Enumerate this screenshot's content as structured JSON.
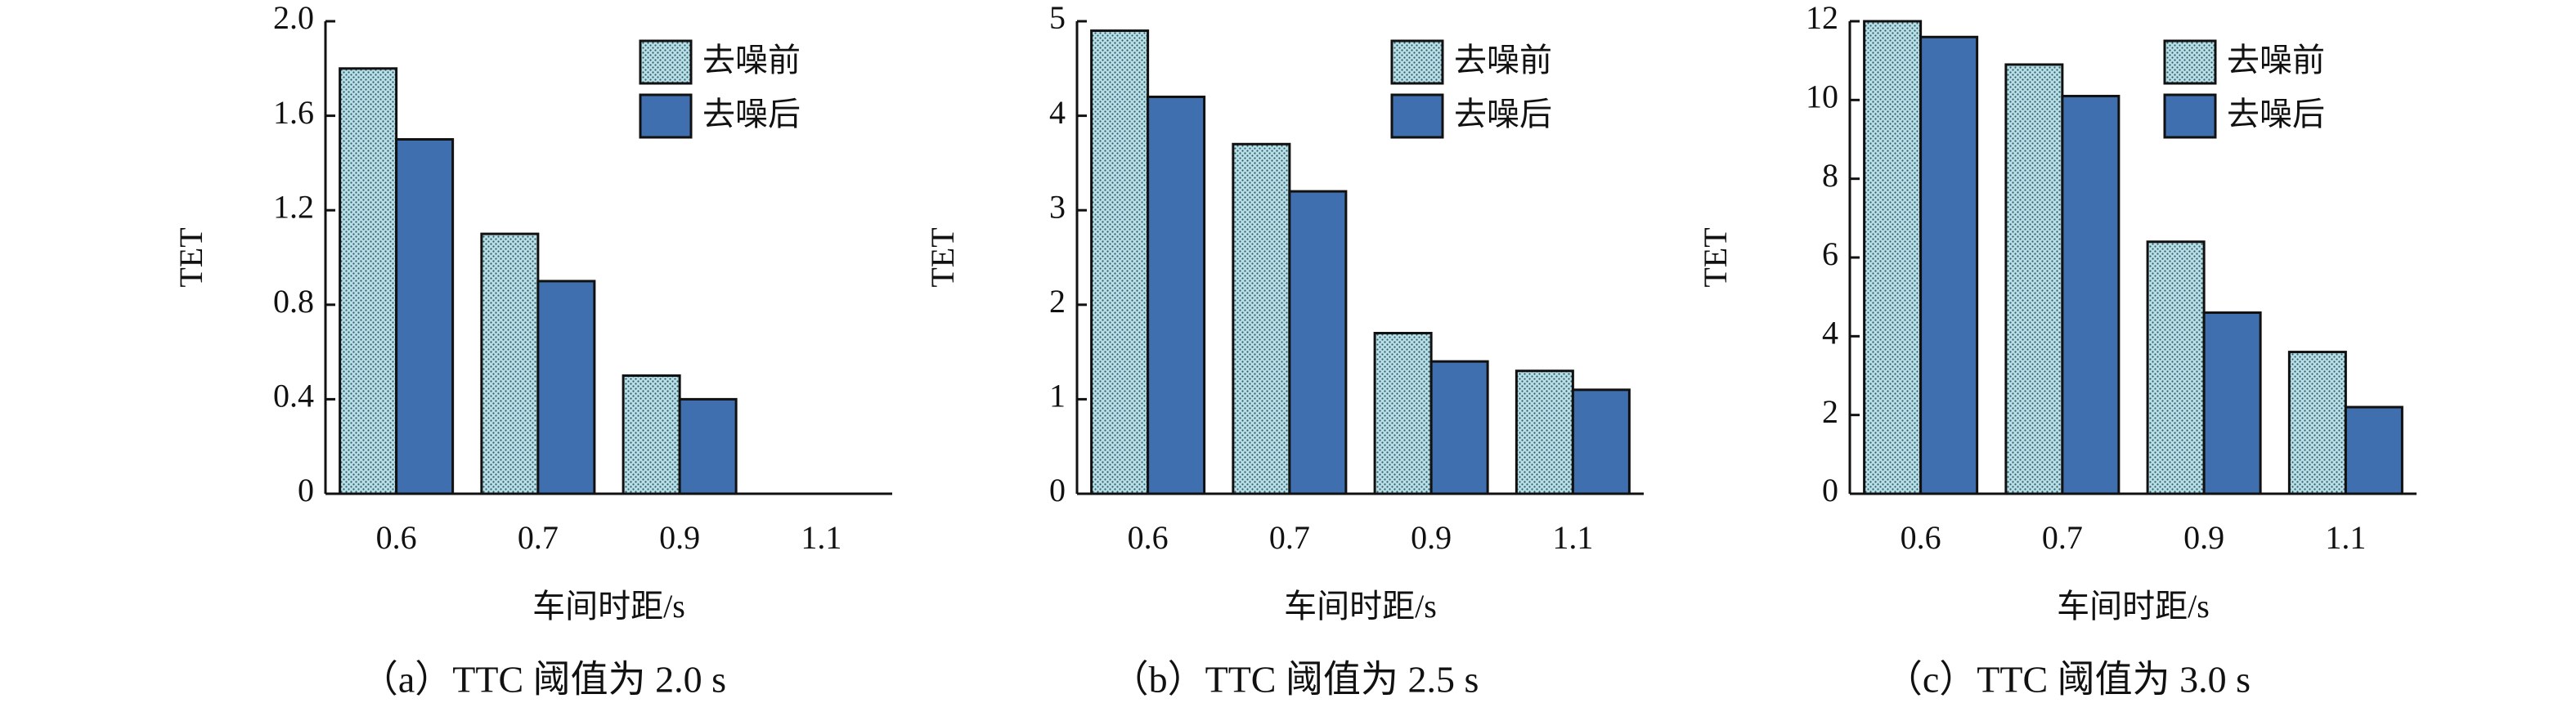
{
  "chart_data": [
    {
      "type": "bar",
      "caption": "（a）TTC 阈值为 2.0 s",
      "xlabel": "车间时距/s",
      "ylabel": "TET",
      "categories": [
        "0.6",
        "0.7",
        "0.9",
        "1.1"
      ],
      "series": [
        {
          "name": "去噪前",
          "color": "#a9d4dc",
          "values": [
            1.8,
            1.1,
            0.5,
            0
          ]
        },
        {
          "name": "去噪后",
          "color": "#3f6fae",
          "values": [
            1.5,
            0.9,
            0.4,
            0
          ]
        }
      ],
      "ylim": [
        0,
        2
      ],
      "yticks": [
        0,
        0.4,
        0.8,
        1.2,
        1.6,
        {
          "value": 2,
          "label": "2.0"
        }
      ],
      "legend": "upper right"
    },
    {
      "type": "bar",
      "caption": "（b）TTC 阈值为 2.5 s",
      "xlabel": "车间时距/s",
      "ylabel": "TET",
      "categories": [
        "0.6",
        "0.7",
        "0.9",
        "1.1"
      ],
      "series": [
        {
          "name": "去噪前",
          "color": "#a9d4dc",
          "values": [
            4.9,
            3.7,
            1.7,
            1.3
          ]
        },
        {
          "name": "去噪后",
          "color": "#3f6fae",
          "values": [
            4.2,
            3.2,
            1.4,
            1.1
          ]
        }
      ],
      "ylim": [
        0,
        5
      ],
      "yticks": [
        0,
        1,
        2,
        3,
        4,
        5
      ],
      "legend": "upper right"
    },
    {
      "type": "bar",
      "caption": "（c）TTC 阈值为 3.0 s",
      "xlabel": "车间时距/s",
      "ylabel": "TET",
      "categories": [
        "0.6",
        "0.7",
        "0.9",
        "1.1"
      ],
      "series": [
        {
          "name": "去噪前",
          "color": "#a9d4dc",
          "values": [
            12,
            10.9,
            6.4,
            3.6
          ]
        },
        {
          "name": "去噪后",
          "color": "#3f6fae",
          "values": [
            11.6,
            10.1,
            4.6,
            2.2
          ]
        }
      ],
      "ylim": [
        0,
        12
      ],
      "yticks": [
        0,
        2,
        4,
        6,
        8,
        10,
        12
      ],
      "legend": "upper right"
    }
  ]
}
